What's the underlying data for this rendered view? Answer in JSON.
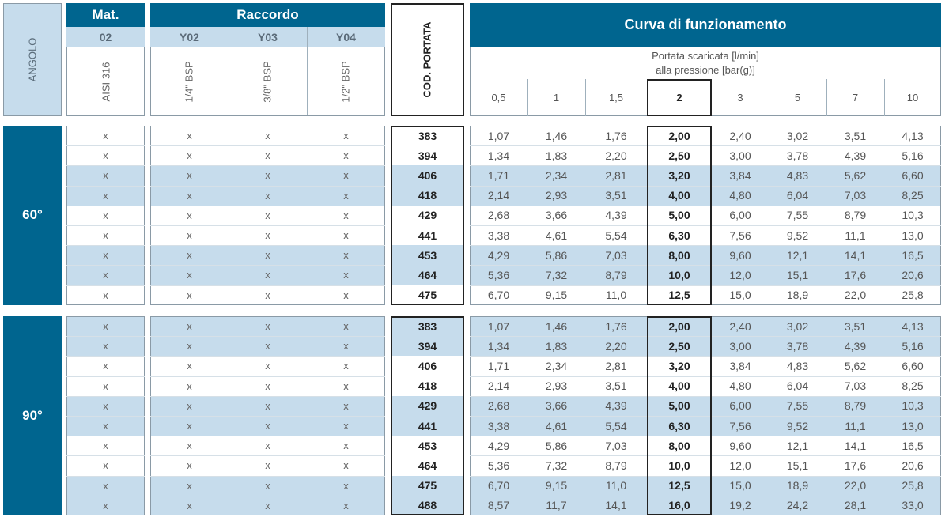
{
  "header": {
    "angolo": "ANGOLO",
    "mat_title": "Mat.",
    "mat_code": "02",
    "mat_name": "AISI 316",
    "raccordo_title": "Raccordo",
    "raccordo_codes": [
      "Y02",
      "Y03",
      "Y04"
    ],
    "raccordo_names": [
      "1/4\" BSP",
      "3/8\" BSP",
      "1/2\" BSP"
    ],
    "cod_portata": "COD. PORTATA",
    "curva_title": "Curva di funzionamento",
    "portata_line1": "Portata scaricata [l/min]",
    "portata_line2": "alla pressione [bar(g)]",
    "pressures": [
      "0,5",
      "1",
      "1,5",
      "2",
      "3",
      "5",
      "7",
      "10"
    ]
  },
  "mark": "x",
  "groups": [
    {
      "angle": "60°",
      "rows": [
        {
          "code": "383",
          "values": [
            "1,07",
            "1,46",
            "1,76",
            "2,00",
            "2,40",
            "3,02",
            "3,51",
            "4,13"
          ]
        },
        {
          "code": "394",
          "values": [
            "1,34",
            "1,83",
            "2,20",
            "2,50",
            "3,00",
            "3,78",
            "4,39",
            "5,16"
          ]
        },
        {
          "code": "406",
          "values": [
            "1,71",
            "2,34",
            "2,81",
            "3,20",
            "3,84",
            "4,83",
            "5,62",
            "6,60"
          ]
        },
        {
          "code": "418",
          "values": [
            "2,14",
            "2,93",
            "3,51",
            "4,00",
            "4,80",
            "6,04",
            "7,03",
            "8,25"
          ]
        },
        {
          "code": "429",
          "values": [
            "2,68",
            "3,66",
            "4,39",
            "5,00",
            "6,00",
            "7,55",
            "8,79",
            "10,3"
          ]
        },
        {
          "code": "441",
          "values": [
            "3,38",
            "4,61",
            "5,54",
            "6,30",
            "7,56",
            "9,52",
            "11,1",
            "13,0"
          ]
        },
        {
          "code": "453",
          "values": [
            "4,29",
            "5,86",
            "7,03",
            "8,00",
            "9,60",
            "12,1",
            "14,1",
            "16,5"
          ]
        },
        {
          "code": "464",
          "values": [
            "5,36",
            "7,32",
            "8,79",
            "10,0",
            "12,0",
            "15,1",
            "17,6",
            "20,6"
          ]
        },
        {
          "code": "475",
          "values": [
            "6,70",
            "9,15",
            "11,0",
            "12,5",
            "15,0",
            "18,9",
            "22,0",
            "25,8"
          ]
        }
      ]
    },
    {
      "angle": "90°",
      "rows": [
        {
          "code": "383",
          "values": [
            "1,07",
            "1,46",
            "1,76",
            "2,00",
            "2,40",
            "3,02",
            "3,51",
            "4,13"
          ]
        },
        {
          "code": "394",
          "values": [
            "1,34",
            "1,83",
            "2,20",
            "2,50",
            "3,00",
            "3,78",
            "4,39",
            "5,16"
          ]
        },
        {
          "code": "406",
          "values": [
            "1,71",
            "2,34",
            "2,81",
            "3,20",
            "3,84",
            "4,83",
            "5,62",
            "6,60"
          ]
        },
        {
          "code": "418",
          "values": [
            "2,14",
            "2,93",
            "3,51",
            "4,00",
            "4,80",
            "6,04",
            "7,03",
            "8,25"
          ]
        },
        {
          "code": "429",
          "values": [
            "2,68",
            "3,66",
            "4,39",
            "5,00",
            "6,00",
            "7,55",
            "8,79",
            "10,3"
          ]
        },
        {
          "code": "441",
          "values": [
            "3,38",
            "4,61",
            "5,54",
            "6,30",
            "7,56",
            "9,52",
            "11,1",
            "13,0"
          ]
        },
        {
          "code": "453",
          "values": [
            "4,29",
            "5,86",
            "7,03",
            "8,00",
            "9,60",
            "12,1",
            "14,1",
            "16,5"
          ]
        },
        {
          "code": "464",
          "values": [
            "5,36",
            "7,32",
            "8,79",
            "10,0",
            "12,0",
            "15,1",
            "17,6",
            "20,6"
          ]
        },
        {
          "code": "475",
          "values": [
            "6,70",
            "9,15",
            "11,0",
            "12,5",
            "15,0",
            "18,9",
            "22,0",
            "25,8"
          ]
        },
        {
          "code": "488",
          "values": [
            "8,57",
            "11,7",
            "14,1",
            "16,0",
            "19,2",
            "24,2",
            "28,1",
            "33,0"
          ]
        }
      ]
    }
  ],
  "colors": {
    "dark": "#00658f",
    "light": "#c6dcec"
  }
}
